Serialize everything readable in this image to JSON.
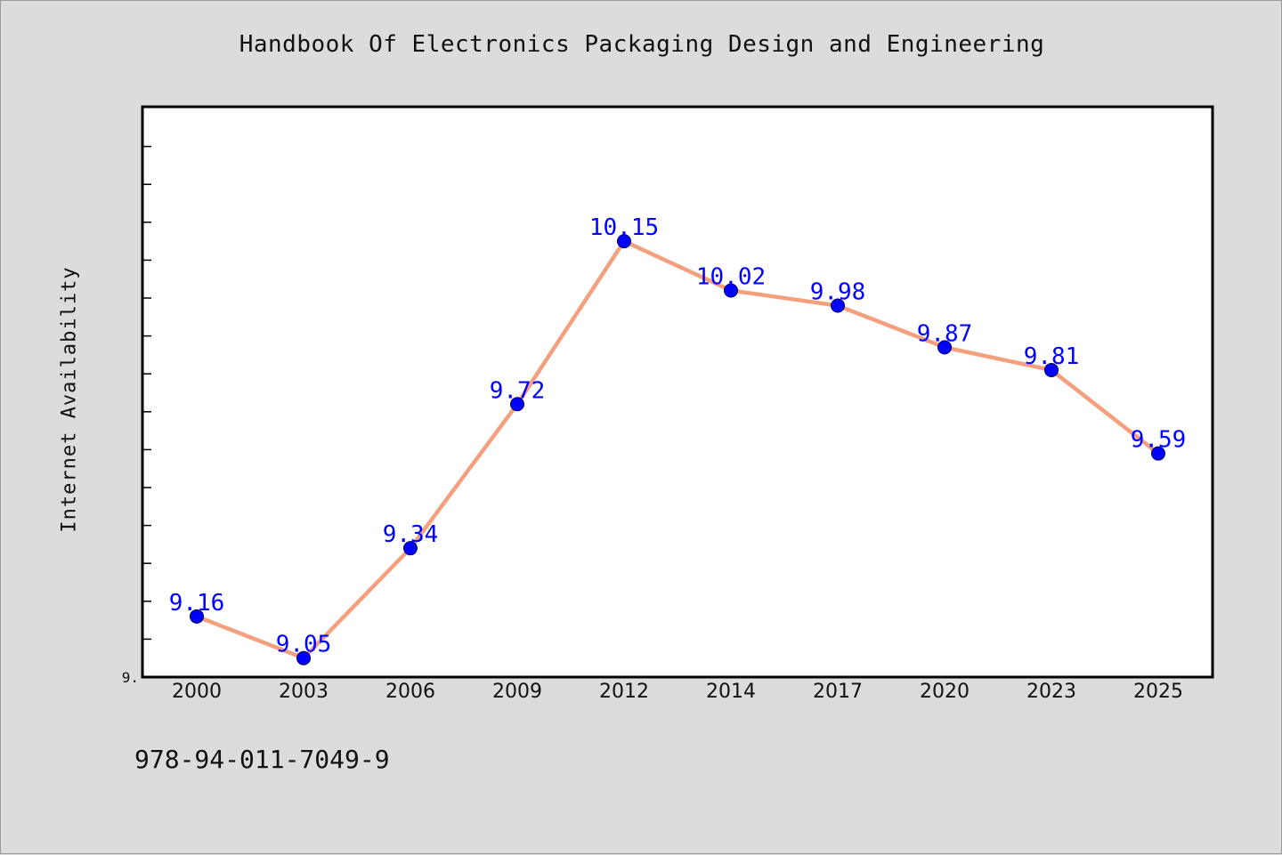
{
  "title": "Handbook Of Electronics Packaging Design and Engineering",
  "footer": "978-94-011-7049-9",
  "colors": {
    "line": "#f4a07e",
    "marker": "#0000ff",
    "label": "#0000ff",
    "background": "#dcdcdc",
    "plot_bg": "#ffffff"
  },
  "chart_data": {
    "type": "line",
    "title": "Handbook Of Electronics Packaging Design and Engineering",
    "xlabel": "",
    "ylabel": "Internet Availability",
    "categories": [
      "2000",
      "2003",
      "2006",
      "2009",
      "2012",
      "2014",
      "2017",
      "2020",
      "2023",
      "2025"
    ],
    "series": [
      {
        "values": [
          9.16,
          9.05,
          9.34,
          9.72,
          10.15,
          10.02,
          9.98,
          9.87,
          9.81,
          9.59
        ]
      }
    ],
    "data_labels": [
      "9.16",
      "9.05",
      "9.34",
      "9.72",
      "10.15",
      "10.02",
      "9.98",
      "9.87",
      "9.81",
      "9.59"
    ],
    "ylim": [
      9.0,
      10.5
    ],
    "y_tick_labels": [
      "9."
    ],
    "grid": false,
    "legend": "none"
  }
}
